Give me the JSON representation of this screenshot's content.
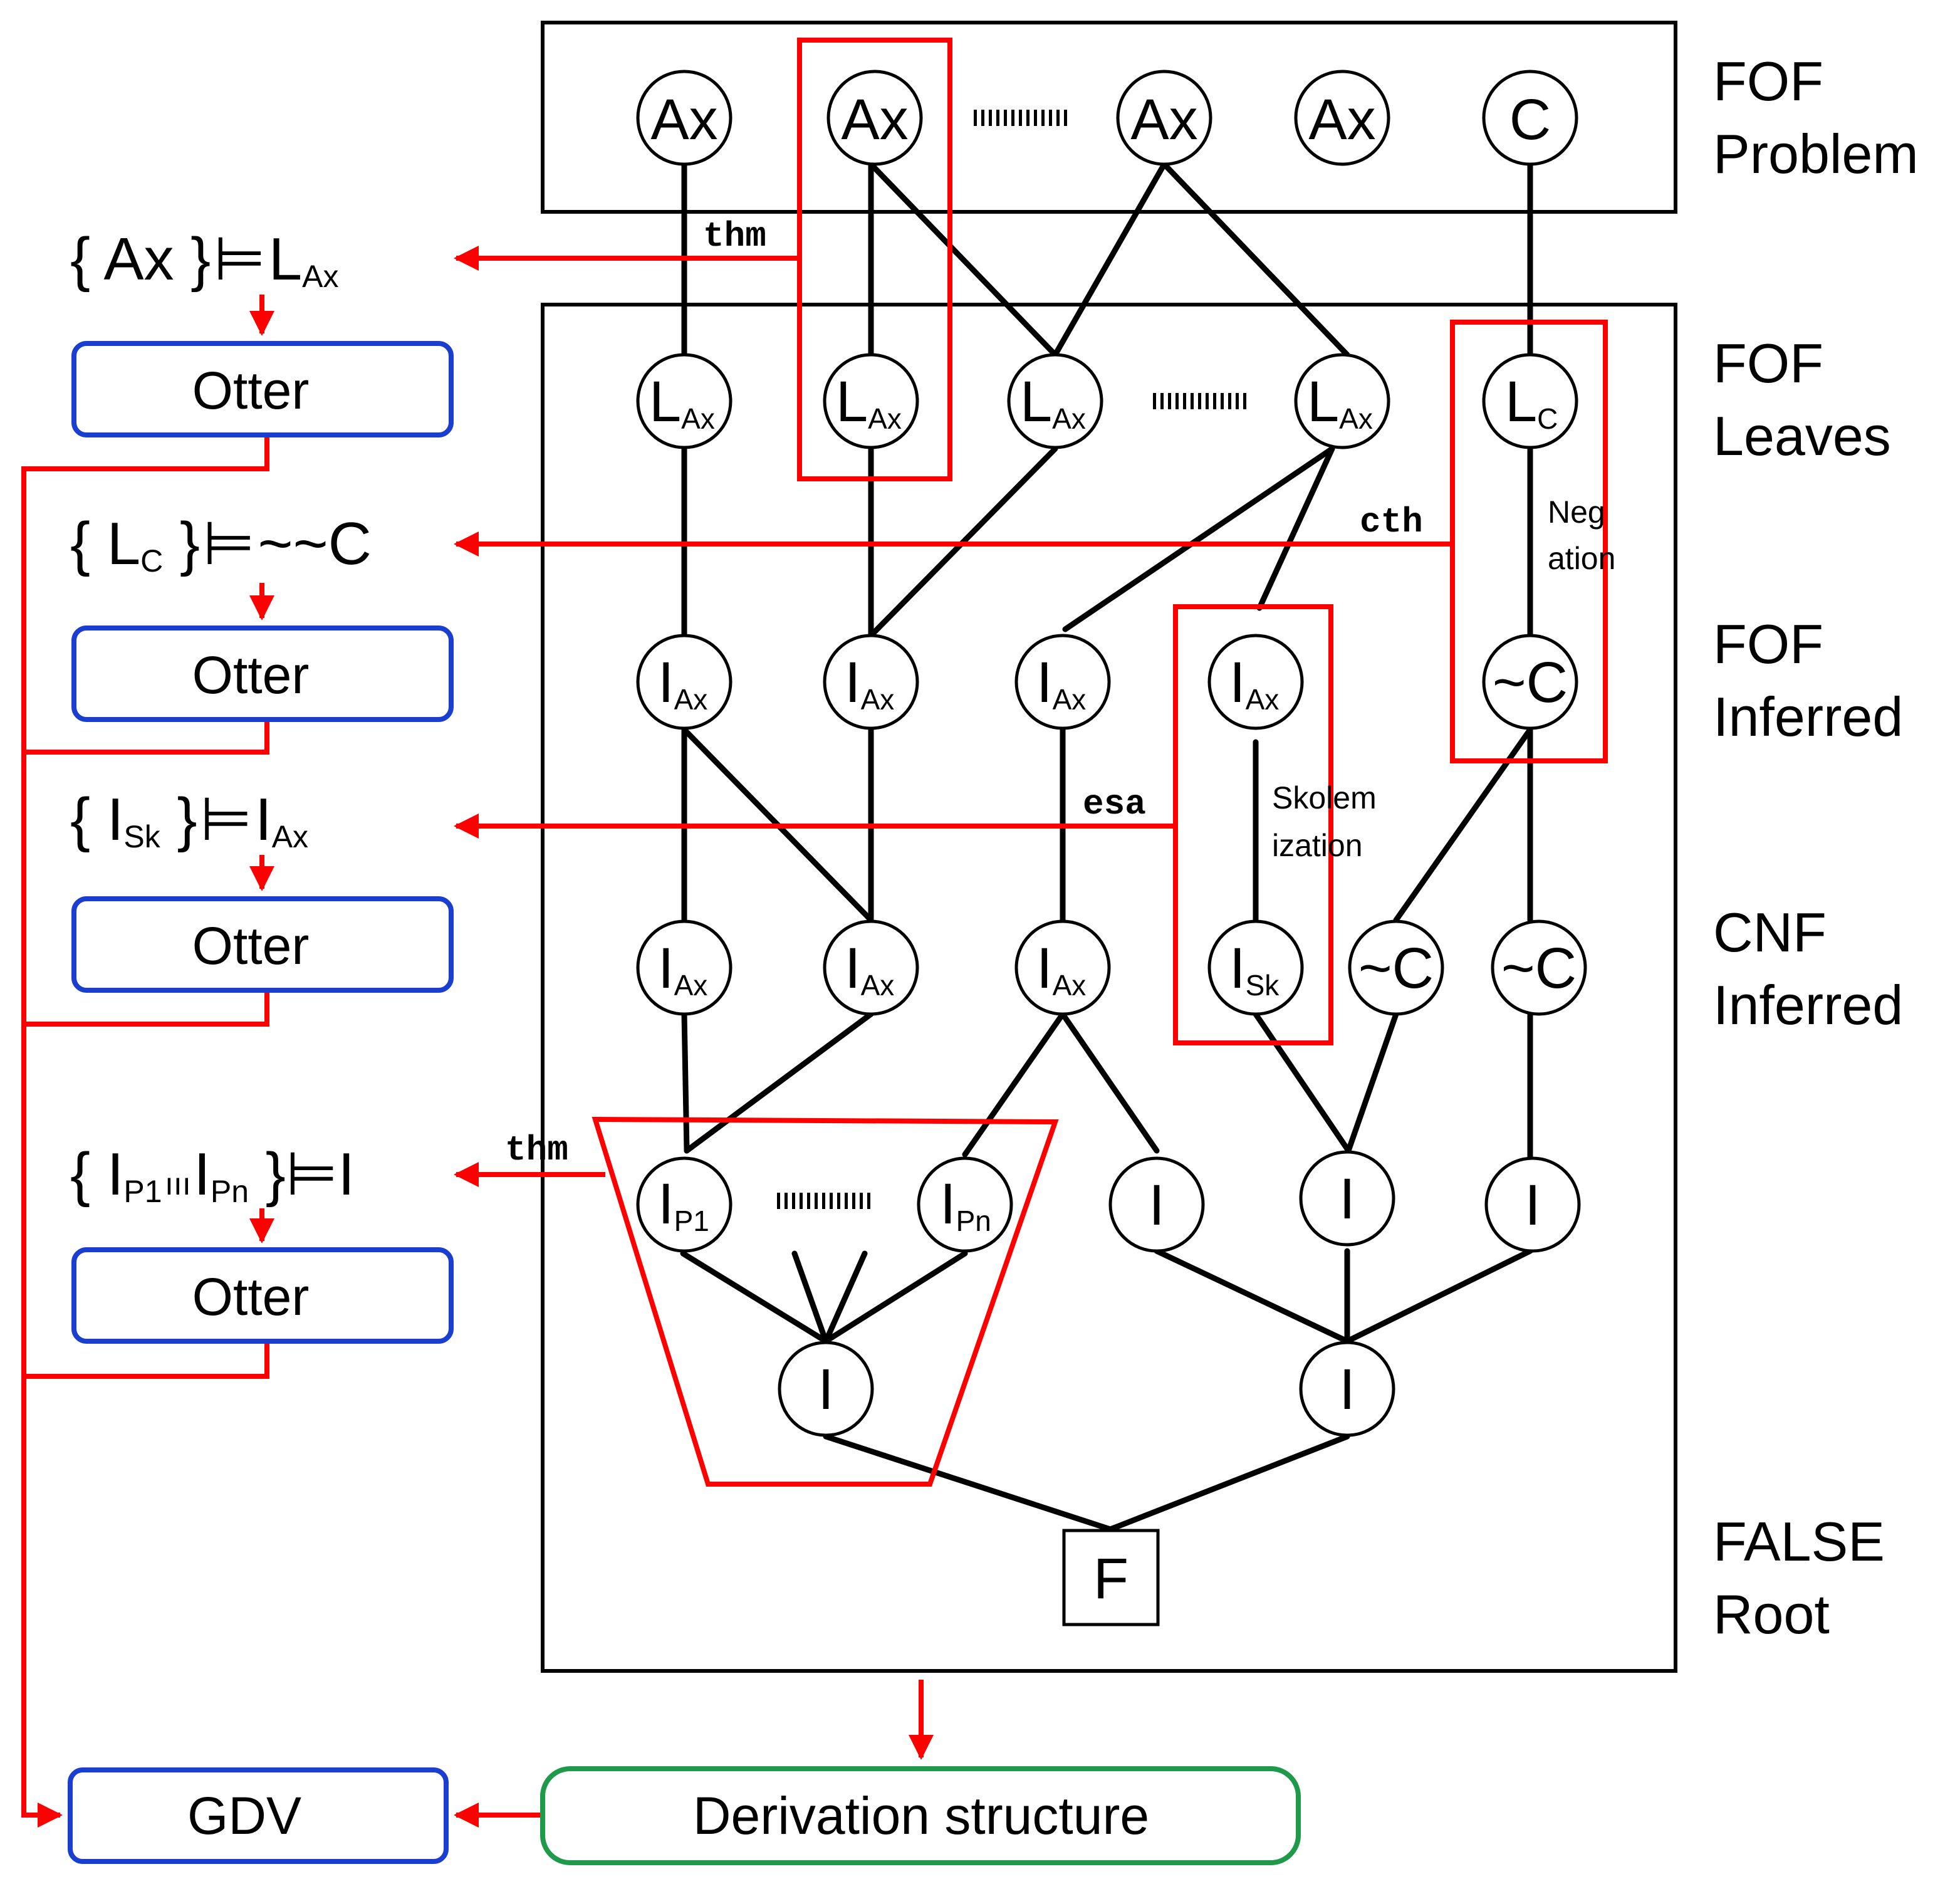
{
  "layer_labels": {
    "problem": [
      "FOF",
      "Problem"
    ],
    "leaves": [
      "FOF",
      "Leaves"
    ],
    "fof_inferred": [
      "FOF",
      "Inferred"
    ],
    "cnf_inferred": [
      "CNF",
      "Inferred"
    ],
    "root": [
      "FALSE",
      "Root"
    ]
  },
  "nodes": {
    "ax": "Ax",
    "c": "C",
    "l": "L",
    "i": "I",
    "neg_c": "~C",
    "f": "F",
    "sub_ax": "Ax",
    "sub_c": "C",
    "sub_sk": "Sk",
    "sub_p1": "P1",
    "sub_pn": "Pn"
  },
  "tags": {
    "thm1": "thm",
    "cth": "cth",
    "esa": "esa",
    "thm2": "thm"
  },
  "annotations": {
    "negation": [
      "Neg",
      "ation"
    ],
    "skolemization": [
      "Skolem",
      "ization"
    ]
  },
  "entailments": {
    "e1": {
      "lhs": "{ Ax }",
      "turnstile": "⊨",
      "rhs": "L",
      "rhs_sub": "Ax"
    },
    "e2": {
      "lb": "{ ",
      "lhs": "L",
      "lhs_sub": "C",
      "rb": " }",
      "turnstile": "⊨",
      "rhs": "~~C"
    },
    "e3": {
      "lb": "{ ",
      "lhs": "I",
      "lhs_sub": "Sk",
      "rb": " }",
      "turnstile": "⊨",
      "rhs": "I",
      "rhs_sub": "Ax"
    },
    "e4": {
      "lb": "{ ",
      "a": "I",
      "a_sub": "P1",
      "dots": "ııı",
      "b": "I",
      "b_sub": "Pn",
      "rb": " }",
      "turnstile": "⊨",
      "rhs": "I"
    }
  },
  "boxes": {
    "otter": "Otter",
    "gdv": "GDV",
    "derivation": "Derivation structure"
  },
  "colors": {
    "red": "#ff0000",
    "blue": "#1a3fd0",
    "green": "#1f9a4a",
    "black": "#000000"
  }
}
